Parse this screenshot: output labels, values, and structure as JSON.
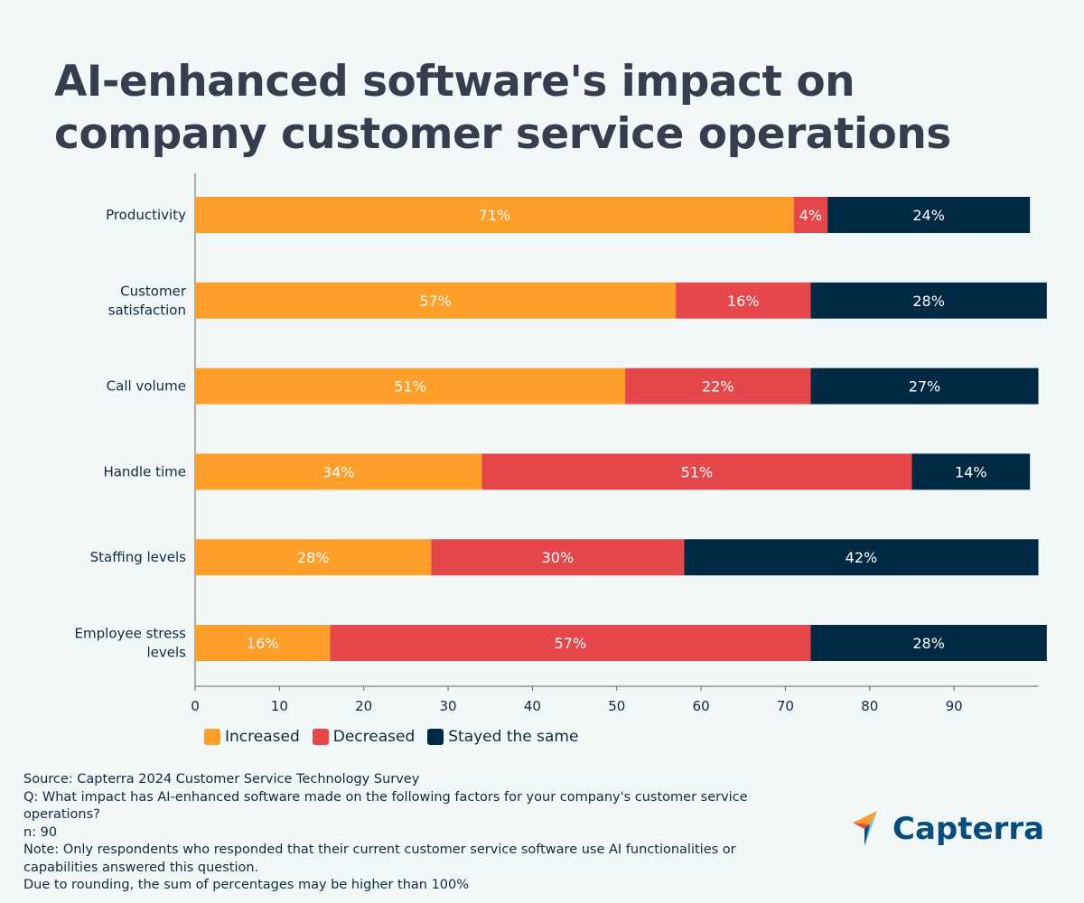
{
  "title": "AI-enhanced software's impact on company customer service operations",
  "chart_data": {
    "type": "bar",
    "orientation": "horizontal",
    "stacked": true,
    "categories": [
      "Productivity",
      "Customer satisfaction",
      "Call volume",
      "Handle time",
      "Staffing levels",
      "Employee stress levels"
    ],
    "series": [
      {
        "name": "Increased",
        "color": "#ff9f2a",
        "values": [
          71,
          57,
          51,
          34,
          28,
          16
        ]
      },
      {
        "name": "Decreased",
        "color": "#e5474a",
        "values": [
          4,
          16,
          22,
          51,
          30,
          57
        ]
      },
      {
        "name": "Stayed the same",
        "color": "#002a44",
        "values": [
          24,
          28,
          27,
          14,
          42,
          28
        ]
      }
    ],
    "xlim": [
      0,
      100
    ],
    "xticks": [
      0,
      10,
      20,
      30,
      40,
      50,
      60,
      70,
      80,
      90
    ],
    "value_suffix": "%",
    "grid": false,
    "legend_position": "bottom"
  },
  "footer": {
    "lines": [
      "Source: Capterra 2024 Customer Service Technology Survey",
      "Q: What impact has AI-enhanced software made on the following factors for your company's customer service operations?",
      "n: 90",
      "Note: Only respondents who responded that their current customer service software use AI functionalities or capabilities answered this question.",
      "Due to rounding, the sum of percentages may be higher than 100%"
    ]
  },
  "logo": {
    "text": "Capterra"
  }
}
